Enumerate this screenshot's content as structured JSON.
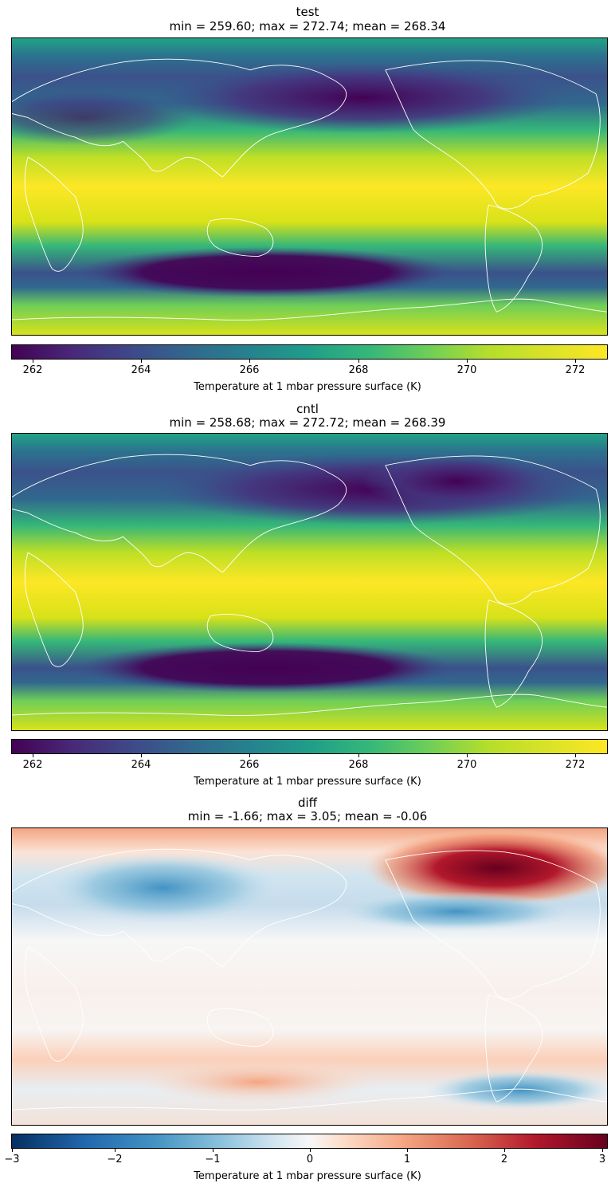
{
  "panels": [
    {
      "id": "test",
      "title": "test",
      "subtitle": "min = 259.60; max = 272.74; mean = 268.34",
      "colormap": "viridis",
      "colorbar": {
        "label": "Temperature at 1 mbar pressure surface (K)",
        "ticks": [
          "262",
          "264",
          "266",
          "268",
          "270",
          "272"
        ],
        "range": [
          261.6,
          272.6
        ]
      }
    },
    {
      "id": "cntl",
      "title": "cntl",
      "subtitle": "min = 258.68; max = 272.72; mean = 268.39",
      "colormap": "viridis",
      "colorbar": {
        "label": "Temperature at 1 mbar pressure surface (K)",
        "ticks": [
          "262",
          "264",
          "266",
          "268",
          "270",
          "272"
        ],
        "range": [
          261.6,
          272.6
        ]
      }
    },
    {
      "id": "diff",
      "title": "diff",
      "subtitle": "min = -1.66; max = 3.05; mean = -0.06",
      "colormap": "RdBu_r",
      "colorbar": {
        "label": "Temperature at 1 mbar pressure surface (K)",
        "ticks": [
          "−3",
          "−2",
          "−1",
          "0",
          "1",
          "2",
          "3"
        ],
        "range": [
          -3.08,
          3.08
        ]
      }
    }
  ]
}
